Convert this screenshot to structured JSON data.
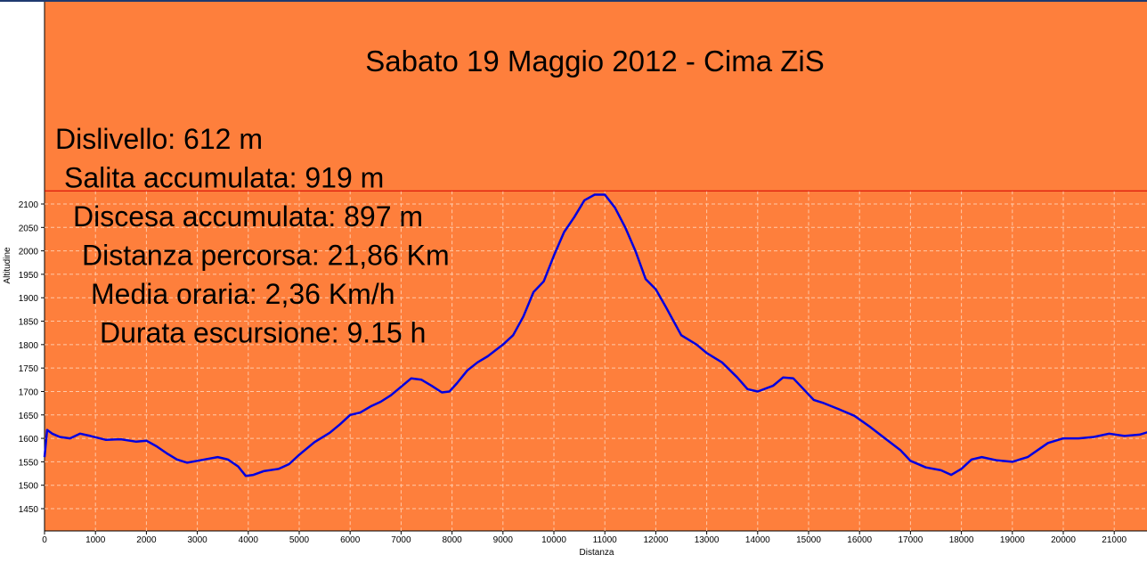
{
  "chart_data": {
    "type": "area",
    "title": "Sabato 19 Maggio 2012 - Cima ZiS",
    "xlabel": "Distanza",
    "ylabel": "Altitudine",
    "xlim": [
      0,
      21860
    ],
    "ylim": [
      1400,
      2130
    ],
    "x_ticks": [
      0,
      1000,
      2000,
      3000,
      4000,
      5000,
      6000,
      7000,
      8000,
      9000,
      10000,
      11000,
      12000,
      13000,
      14000,
      15000,
      16000,
      17000,
      18000,
      19000,
      20000,
      21000
    ],
    "y_ticks": [
      1450,
      1500,
      1550,
      1600,
      1650,
      1700,
      1750,
      1800,
      1850,
      1900,
      1950,
      2000,
      2050,
      2100
    ],
    "grid": true,
    "reference_line": 2128,
    "stats": [
      "Dislivello: 612 m",
      "Salita accumulata: 919 m",
      "Discesa accumulata: 897 m",
      "Distanza percorsa: 21,86 Km",
      "Media oraria: 2,36 Km/h",
      "Durata escursione: 9.15 h"
    ],
    "series": [
      {
        "color": "#0000e0",
        "x": [
          0,
          50,
          150,
          300,
          500,
          700,
          900,
          1200,
          1500,
          1800,
          2000,
          2200,
          2400,
          2600,
          2800,
          3000,
          3200,
          3400,
          3600,
          3800,
          3950,
          4100,
          4300,
          4600,
          4800,
          5000,
          5300,
          5600,
          5800,
          6000,
          6200,
          6400,
          6600,
          6800,
          7000,
          7200,
          7400,
          7600,
          7800,
          7950,
          8100,
          8300,
          8500,
          8700,
          9000,
          9200,
          9400,
          9600,
          9800,
          10000,
          10200,
          10400,
          10600,
          10800,
          11000,
          11200,
          11400,
          11600,
          11800,
          12000,
          12200,
          12500,
          12800,
          13000,
          13300,
          13600,
          13800,
          14000,
          14300,
          14500,
          14700,
          14900,
          15100,
          15300,
          15600,
          15900,
          16200,
          16500,
          16800,
          17000,
          17300,
          17600,
          17800,
          18000,
          18200,
          18400,
          18700,
          19000,
          19300,
          19500,
          19700,
          20000,
          20300,
          20600,
          20900,
          21200,
          21500,
          21800
        ],
        "values": [
          1560,
          1618,
          1610,
          1603,
          1600,
          1610,
          1605,
          1597,
          1598,
          1593,
          1595,
          1583,
          1568,
          1555,
          1548,
          1552,
          1556,
          1560,
          1555,
          1540,
          1520,
          1522,
          1530,
          1535,
          1545,
          1565,
          1592,
          1612,
          1630,
          1650,
          1655,
          1668,
          1678,
          1692,
          1710,
          1728,
          1725,
          1712,
          1698,
          1700,
          1718,
          1745,
          1762,
          1775,
          1800,
          1820,
          1860,
          1912,
          1935,
          1990,
          2040,
          2072,
          2108,
          2120,
          2120,
          2092,
          2050,
          2000,
          1940,
          1918,
          1880,
          1820,
          1800,
          1782,
          1762,
          1730,
          1705,
          1700,
          1712,
          1730,
          1728,
          1705,
          1682,
          1675,
          1662,
          1648,
          1625,
          1600,
          1575,
          1552,
          1538,
          1532,
          1522,
          1535,
          1555,
          1560,
          1553,
          1550,
          1560,
          1575,
          1590,
          1600,
          1600,
          1603,
          1610,
          1605,
          1608,
          1618
        ]
      }
    ]
  }
}
